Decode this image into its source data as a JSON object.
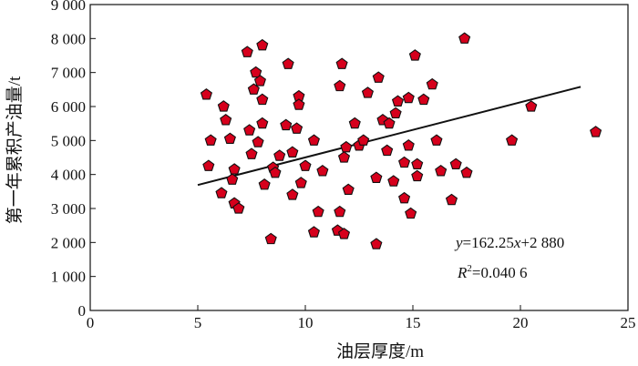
{
  "chart_data": {
    "type": "scatter",
    "title": "",
    "xlabel": "油层厚度/m",
    "ylabel": "第一年累积产油量/t",
    "xlim": [
      0,
      25
    ],
    "ylim": [
      0,
      9000
    ],
    "x_ticks": [
      "0",
      "5",
      "10",
      "15",
      "20",
      "25"
    ],
    "y_ticks": [
      "0",
      "1 000",
      "2 000",
      "3 000",
      "4 000",
      "5 000",
      "6 000",
      "7 000",
      "8 000",
      "9 000"
    ],
    "grid": false,
    "marker": "pentagon",
    "marker_color": "#d6001c",
    "marker_edge": "#111111",
    "trendline": {
      "slope": 162.25,
      "intercept": 2880,
      "x_range": [
        5,
        22.8
      ],
      "equation_label": "y=162.25x+2 880",
      "r2_label": "R2=0.040 6"
    },
    "points": [
      {
        "x": 5.4,
        "y": 6350
      },
      {
        "x": 5.5,
        "y": 4250
      },
      {
        "x": 5.6,
        "y": 5000
      },
      {
        "x": 6.1,
        "y": 3450
      },
      {
        "x": 6.2,
        "y": 6000
      },
      {
        "x": 6.3,
        "y": 5600
      },
      {
        "x": 6.5,
        "y": 5050
      },
      {
        "x": 6.6,
        "y": 3850
      },
      {
        "x": 6.7,
        "y": 4150
      },
      {
        "x": 6.7,
        "y": 3150
      },
      {
        "x": 6.9,
        "y": 3000
      },
      {
        "x": 7.3,
        "y": 7600
      },
      {
        "x": 7.4,
        "y": 5300
      },
      {
        "x": 7.5,
        "y": 4600
      },
      {
        "x": 7.6,
        "y": 6500
      },
      {
        "x": 7.7,
        "y": 7000
      },
      {
        "x": 7.8,
        "y": 4950
      },
      {
        "x": 7.9,
        "y": 6750
      },
      {
        "x": 8.0,
        "y": 7800
      },
      {
        "x": 8.0,
        "y": 6200
      },
      {
        "x": 8.0,
        "y": 5500
      },
      {
        "x": 8.1,
        "y": 3700
      },
      {
        "x": 8.4,
        "y": 2100
      },
      {
        "x": 8.5,
        "y": 4200
      },
      {
        "x": 8.6,
        "y": 4050
      },
      {
        "x": 8.8,
        "y": 4550
      },
      {
        "x": 9.1,
        "y": 5450
      },
      {
        "x": 9.2,
        "y": 7250
      },
      {
        "x": 9.4,
        "y": 3400
      },
      {
        "x": 9.4,
        "y": 4650
      },
      {
        "x": 9.6,
        "y": 5350
      },
      {
        "x": 9.7,
        "y": 6300
      },
      {
        "x": 9.7,
        "y": 6050
      },
      {
        "x": 9.8,
        "y": 3750
      },
      {
        "x": 10.0,
        "y": 4250
      },
      {
        "x": 10.4,
        "y": 5000
      },
      {
        "x": 10.4,
        "y": 2300
      },
      {
        "x": 10.6,
        "y": 2900
      },
      {
        "x": 10.8,
        "y": 4100
      },
      {
        "x": 11.5,
        "y": 2350
      },
      {
        "x": 11.6,
        "y": 2900
      },
      {
        "x": 11.6,
        "y": 6600
      },
      {
        "x": 11.7,
        "y": 7250
      },
      {
        "x": 11.8,
        "y": 4500
      },
      {
        "x": 11.8,
        "y": 2250
      },
      {
        "x": 11.9,
        "y": 4800
      },
      {
        "x": 12.0,
        "y": 3550
      },
      {
        "x": 12.3,
        "y": 5500
      },
      {
        "x": 12.5,
        "y": 4850
      },
      {
        "x": 12.7,
        "y": 5000
      },
      {
        "x": 12.9,
        "y": 6400
      },
      {
        "x": 13.3,
        "y": 1950
      },
      {
        "x": 13.3,
        "y": 3900
      },
      {
        "x": 13.4,
        "y": 6850
      },
      {
        "x": 13.6,
        "y": 5600
      },
      {
        "x": 13.8,
        "y": 4700
      },
      {
        "x": 13.9,
        "y": 5500
      },
      {
        "x": 14.1,
        "y": 3800
      },
      {
        "x": 14.2,
        "y": 5800
      },
      {
        "x": 14.3,
        "y": 6150
      },
      {
        "x": 14.6,
        "y": 3300
      },
      {
        "x": 14.6,
        "y": 4350
      },
      {
        "x": 14.8,
        "y": 6250
      },
      {
        "x": 14.8,
        "y": 4850
      },
      {
        "x": 14.9,
        "y": 2850
      },
      {
        "x": 15.1,
        "y": 7500
      },
      {
        "x": 15.2,
        "y": 3950
      },
      {
        "x": 15.2,
        "y": 4300
      },
      {
        "x": 15.5,
        "y": 6200
      },
      {
        "x": 15.9,
        "y": 6650
      },
      {
        "x": 16.1,
        "y": 5000
      },
      {
        "x": 16.3,
        "y": 4100
      },
      {
        "x": 16.8,
        "y": 3250
      },
      {
        "x": 17.0,
        "y": 4300
      },
      {
        "x": 17.4,
        "y": 8000
      },
      {
        "x": 17.5,
        "y": 4050
      },
      {
        "x": 19.6,
        "y": 5000
      },
      {
        "x": 20.5,
        "y": 6000
      },
      {
        "x": 23.5,
        "y": 5250
      }
    ]
  }
}
